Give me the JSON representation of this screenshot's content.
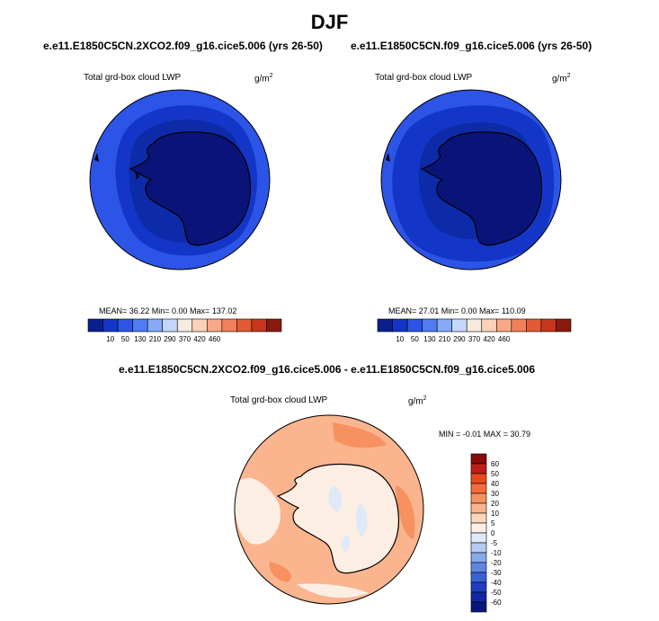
{
  "header": {
    "title": "DJF"
  },
  "panels": [
    {
      "case": "e.e11.E1850C5CN.2XCO2.f09_g16.cice5.006 (yrs 26-50)",
      "variable": "Total grd-box cloud LWP",
      "units": "g/m",
      "units_sup": "2",
      "stats": "MEAN=  36.22  Min=   0.00  Max= 137.02"
    },
    {
      "case": "e.e11.E1850C5CN.f09_g16.cice5.006 (yrs 26-50)",
      "variable": "Total grd-box cloud LWP",
      "units": "g/m",
      "units_sup": "2",
      "stats": "MEAN=  27.01  Min=   0.00  Max= 110.09"
    }
  ],
  "diff": {
    "title": "e.e11.E1850C5CN.2XCO2.f09_g16.cice5.006 - e.e11.E1850C5CN.f09_g16.cice5.006",
    "variable": "Total grd-box cloud LWP",
    "units": "g/m",
    "units_sup": "2",
    "stats": "MIN =  -0.01 MAX =  30.79"
  },
  "colorbar_horizontal": {
    "ticks": [
      "10",
      "50",
      "130",
      "210",
      "290",
      "370",
      "420",
      "460"
    ],
    "colors": [
      "#0a1f8f",
      "#1336c8",
      "#2c54e6",
      "#4f7cf2",
      "#86aaf7",
      "#c4d6fb",
      "#f5ecdf",
      "#fad2b8",
      "#f7a985",
      "#f08059",
      "#e25a35",
      "#c7361b",
      "#8b1a0e"
    ]
  },
  "colorbar_vertical": {
    "ticks": [
      "60",
      "50",
      "40",
      "30",
      "20",
      "10",
      "5",
      "0",
      "-5",
      "-10",
      "-20",
      "-30",
      "-40",
      "-50",
      "-60"
    ],
    "colors": [
      "#8b0a0a",
      "#c11d14",
      "#e84a1e",
      "#f46b3c",
      "#f7915f",
      "#fab48e",
      "#fdd5bb",
      "#fdeee3",
      "#dfe9f7",
      "#b4cbf3",
      "#86a9ec",
      "#5f87e2",
      "#3a62d6",
      "#1f3fc0",
      "#0f27a0",
      "#08187a"
    ]
  },
  "map_colors": {
    "ocean_band_1": "#2c54e6",
    "ocean_band_2": "#1336c8",
    "ocean_band_3": "#0d2aa8",
    "land": "#0a1478",
    "diff_ocean": "#fab48e",
    "diff_strong": "#f7915f",
    "diff_weak": "#fdeee3",
    "diff_land": "#fdeee3",
    "diff_neg": "#dfe9f7"
  }
}
